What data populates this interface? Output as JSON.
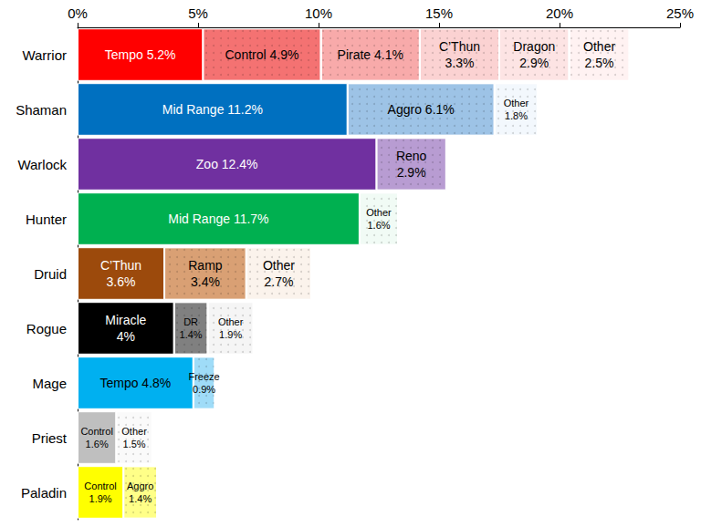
{
  "chart_data": {
    "type": "bar",
    "orientation": "horizontal",
    "stacked": true,
    "data_labels": true,
    "grid": false,
    "categories": [
      "Warrior",
      "Shaman",
      "Warlock",
      "Hunter",
      "Druid",
      "Rogue",
      "Mage",
      "Priest",
      "Paladin"
    ],
    "xlim": [
      0,
      25
    ],
    "xticks": [
      {
        "value": 0,
        "label": "0%"
      },
      {
        "value": 5,
        "label": "5%"
      },
      {
        "value": 10,
        "label": "10%"
      },
      {
        "value": 15,
        "label": "15%"
      },
      {
        "value": 20,
        "label": "20%"
      },
      {
        "value": 25,
        "label": "25%"
      }
    ],
    "series": [
      {
        "name": "Tempo",
        "color": "#ff0000",
        "values": [
          5.2,
          null,
          null,
          null,
          null,
          null,
          null,
          null,
          null
        ],
        "value_labels": [
          "Tempo 5.2%",
          null,
          null,
          null,
          null,
          null,
          null,
          null,
          null
        ]
      },
      {
        "name": "Control",
        "color": "#f47272",
        "values": [
          4.9,
          null,
          null,
          null,
          null,
          null,
          null,
          null,
          null
        ],
        "value_labels": [
          "Control 4.9%",
          null,
          null,
          null,
          null,
          null,
          null,
          null,
          null
        ]
      },
      {
        "name": "Pirate",
        "color": "#f8aaaa",
        "values": [
          4.1,
          null,
          null,
          null,
          null,
          null,
          null,
          null,
          null
        ],
        "value_labels": [
          "Pirate 4.1%",
          null,
          null,
          null,
          null,
          null,
          null,
          null,
          null
        ]
      },
      {
        "name": "C’Thun",
        "color": "#fbd2d2",
        "values": [
          3.3,
          null,
          null,
          null,
          null,
          null,
          null,
          null,
          null
        ],
        "value_labels": [
          "C’Thun\n3.3%",
          null,
          null,
          null,
          null,
          null,
          null,
          null,
          null
        ]
      },
      {
        "name": "Dragon",
        "color": "#fde4e4",
        "values": [
          2.9,
          null,
          null,
          null,
          null,
          null,
          null,
          null,
          null
        ],
        "value_labels": [
          "Dragon\n2.9%",
          null,
          null,
          null,
          null,
          null,
          null,
          null,
          null
        ]
      },
      {
        "name": "Other",
        "color": "#fff2f2",
        "values": [
          2.5,
          null,
          null,
          null,
          null,
          null,
          null,
          null,
          null
        ],
        "value_labels": [
          "Other\n2.5%",
          null,
          null,
          null,
          null,
          null,
          null,
          null,
          null
        ]
      },
      {
        "name": "Mid Range",
        "color": "#0070c0",
        "values": [
          null,
          11.2,
          null,
          null,
          null,
          null,
          null,
          null,
          null
        ],
        "value_labels": [
          null,
          "Mid Range 11.2%",
          null,
          null,
          null,
          null,
          null,
          null,
          null
        ]
      },
      {
        "name": "Aggro",
        "color": "#9dc3e6",
        "values": [
          null,
          6.1,
          null,
          null,
          null,
          null,
          null,
          null,
          null
        ],
        "value_labels": [
          null,
          "Aggro 6.1%",
          null,
          null,
          null,
          null,
          null,
          null,
          null
        ]
      },
      {
        "name": "Other",
        "color": "#f3f8fd",
        "values": [
          null,
          1.8,
          null,
          null,
          null,
          null,
          null,
          null,
          null
        ],
        "value_labels": [
          null,
          "Other\n1.8%",
          null,
          null,
          null,
          null,
          null,
          null,
          null
        ]
      },
      {
        "name": "Zoo",
        "color": "#7030a0",
        "values": [
          null,
          null,
          12.4,
          null,
          null,
          null,
          null,
          null,
          null
        ],
        "value_labels": [
          null,
          null,
          "Zoo 12.4%",
          null,
          null,
          null,
          null,
          null,
          null
        ]
      },
      {
        "name": "Reno",
        "color": "#b89cd2",
        "values": [
          null,
          null,
          2.9,
          null,
          null,
          null,
          null,
          null,
          null
        ],
        "value_labels": [
          null,
          null,
          "Reno\n2.9%",
          null,
          null,
          null,
          null,
          null,
          null
        ]
      },
      {
        "name": "Mid Range",
        "color": "#00b050",
        "values": [
          null,
          null,
          null,
          11.7,
          null,
          null,
          null,
          null,
          null
        ],
        "value_labels": [
          null,
          null,
          null,
          "Mid Range 11.7%",
          null,
          null,
          null,
          null,
          null
        ]
      },
      {
        "name": "Other",
        "color": "#f1fbf5",
        "values": [
          null,
          null,
          null,
          1.6,
          null,
          null,
          null,
          null,
          null
        ],
        "value_labels": [
          null,
          null,
          null,
          "Other\n1.6%",
          null,
          null,
          null,
          null,
          null
        ]
      },
      {
        "name": "C’Thun",
        "color": "#9c4a0c",
        "values": [
          null,
          null,
          null,
          null,
          3.6,
          null,
          null,
          null,
          null
        ],
        "value_labels": [
          null,
          null,
          null,
          null,
          "C’Thun\n3.6%",
          null,
          null,
          null,
          null
        ]
      },
      {
        "name": "Ramp",
        "color": "#d9a074",
        "values": [
          null,
          null,
          null,
          null,
          3.4,
          null,
          null,
          null,
          null
        ],
        "value_labels": [
          null,
          null,
          null,
          null,
          "Ramp\n3.4%",
          null,
          null,
          null,
          null
        ]
      },
      {
        "name": "Other",
        "color": "#fbf3ec",
        "values": [
          null,
          null,
          null,
          null,
          2.7,
          null,
          null,
          null,
          null
        ],
        "value_labels": [
          null,
          null,
          null,
          null,
          "Other\n2.7%",
          null,
          null,
          null,
          null
        ]
      },
      {
        "name": "Miracle",
        "color": "#000000",
        "values": [
          null,
          null,
          null,
          null,
          null,
          4,
          null,
          null,
          null
        ],
        "value_labels": [
          null,
          null,
          null,
          null,
          null,
          "Miracle\n4%",
          null,
          null,
          null
        ]
      },
      {
        "name": "DR",
        "color": "#808080",
        "values": [
          null,
          null,
          null,
          null,
          null,
          1.4,
          null,
          null,
          null
        ],
        "value_labels": [
          null,
          null,
          null,
          null,
          null,
          "DR\n1.4%",
          null,
          null,
          null
        ]
      },
      {
        "name": "Other",
        "color": "#f5f5f5",
        "values": [
          null,
          null,
          null,
          null,
          null,
          1.9,
          null,
          null,
          null
        ],
        "value_labels": [
          null,
          null,
          null,
          null,
          null,
          "Other\n1.9%",
          null,
          null,
          null
        ]
      },
      {
        "name": "Tempo",
        "color": "#00b0f0",
        "values": [
          null,
          null,
          null,
          null,
          null,
          null,
          4.8,
          null,
          null
        ],
        "value_labels": [
          null,
          null,
          null,
          null,
          null,
          null,
          "Tempo 4.8%",
          null,
          null
        ]
      },
      {
        "name": "Freeze",
        "color": "#9fdcf8",
        "values": [
          null,
          null,
          null,
          null,
          null,
          null,
          0.9,
          null,
          null
        ],
        "value_labels": [
          null,
          null,
          null,
          null,
          null,
          null,
          "Freeze\n0.9%",
          null,
          null
        ]
      },
      {
        "name": "Control",
        "color": "#bfbfbf",
        "values": [
          null,
          null,
          null,
          null,
          null,
          null,
          null,
          1.6,
          null
        ],
        "value_labels": [
          null,
          null,
          null,
          null,
          null,
          null,
          null,
          "Control\n1.6%",
          null
        ]
      },
      {
        "name": "Other",
        "color": "#fafafa",
        "values": [
          null,
          null,
          null,
          null,
          null,
          null,
          null,
          1.5,
          null
        ],
        "value_labels": [
          null,
          null,
          null,
          null,
          null,
          null,
          null,
          "Other\n1.5%",
          null
        ]
      },
      {
        "name": "Control",
        "color": "#ffff00",
        "values": [
          null,
          null,
          null,
          null,
          null,
          null,
          null,
          null,
          1.9
        ],
        "value_labels": [
          null,
          null,
          null,
          null,
          null,
          null,
          null,
          null,
          "Control\n1.9%"
        ]
      },
      {
        "name": "Aggro",
        "color": "#ffff88",
        "values": [
          null,
          null,
          null,
          null,
          null,
          null,
          null,
          null,
          1.4
        ],
        "value_labels": [
          null,
          null,
          null,
          null,
          null,
          null,
          null,
          null,
          "Aggro\n1.4%"
        ]
      }
    ]
  }
}
